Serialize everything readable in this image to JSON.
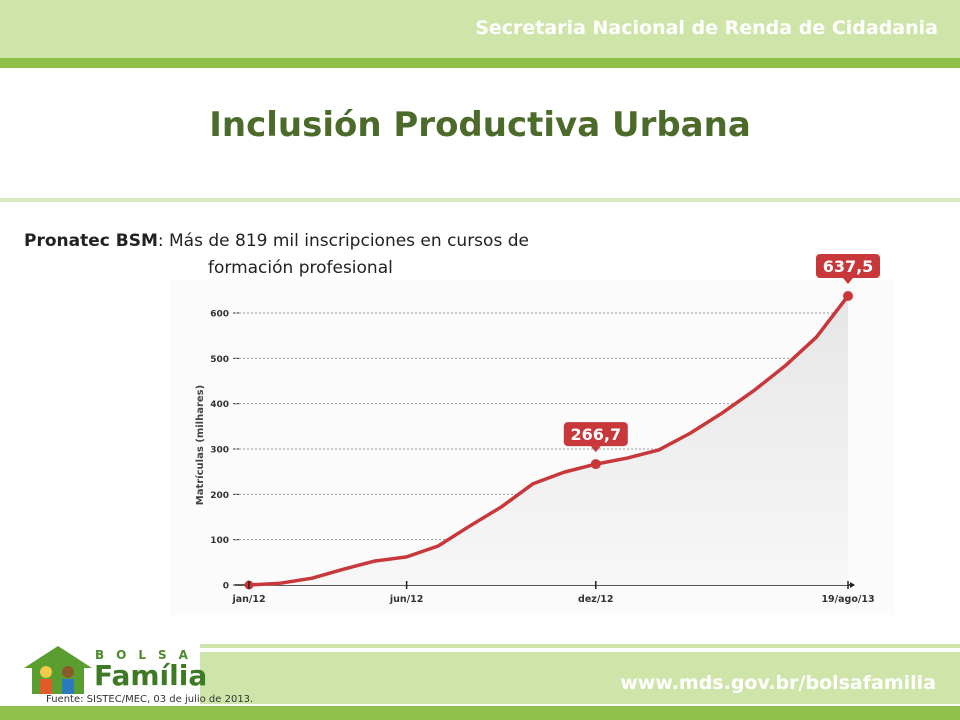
{
  "header": "Secretaria Nacional de Renda de Cidadania",
  "title": "Inclusión Productiva Urbana",
  "subtitle_bold": "Pronatec BSM",
  "subtitle_line1": ": Más de 819 mil inscripciones en cursos de",
  "subtitle_line2": "formación profesional",
  "logo": {
    "top": "BOLSA",
    "bottom": "Família"
  },
  "source": "Fuente: SISTEC/MEC, 03 de julio de 2013.",
  "url": "www.mds.gov.br/bolsafamilia",
  "chart_data": {
    "type": "line",
    "ylabel": "Matrículas (milhares)",
    "categories": [
      "jan/12",
      null,
      null,
      null,
      null,
      "jun/12",
      null,
      null,
      null,
      null,
      null,
      "dez/12",
      null,
      null,
      null,
      null,
      null,
      null,
      null,
      "19/ago/13"
    ],
    "series": [
      {
        "name": "Matrículas",
        "color": "#c8373a",
        "values": [
          0,
          4,
          15,
          35,
          53,
          62,
          86,
          130,
          172,
          223,
          249,
          266.7,
          280,
          298,
          335,
          379,
          428,
          483,
          547,
          637.5
        ],
        "value_labels": [
          null,
          null,
          null,
          null,
          null,
          null,
          null,
          null,
          null,
          null,
          null,
          "266,7",
          null,
          null,
          null,
          null,
          null,
          null,
          null,
          "637,5"
        ]
      }
    ],
    "ylim": [
      0,
      650
    ],
    "yticks": [
      0,
      100,
      200,
      300,
      400,
      500,
      600
    ],
    "grid": true
  }
}
